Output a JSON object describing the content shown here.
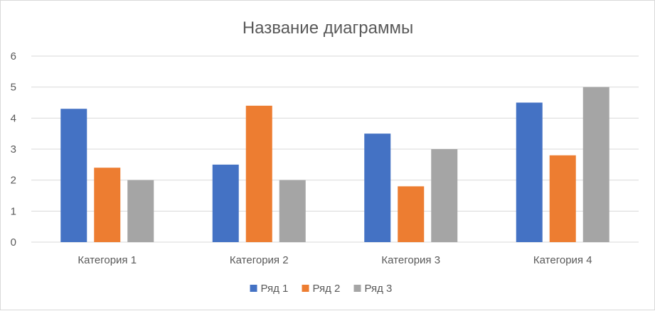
{
  "chart_data": {
    "type": "bar",
    "title": "Название диаграммы",
    "xlabel": "",
    "ylabel": "",
    "categories": [
      "Категория 1",
      "Категория 2",
      "Категория 3",
      "Категория 4"
    ],
    "series": [
      {
        "name": "Ряд 1",
        "color": "#4472c4",
        "values": [
          4.3,
          2.5,
          3.5,
          4.5
        ]
      },
      {
        "name": "Ряд 2",
        "color": "#ed7d31",
        "values": [
          2.4,
          4.4,
          1.8,
          2.8
        ]
      },
      {
        "name": "Ряд 3",
        "color": "#a5a5a5",
        "values": [
          2,
          2,
          3,
          5
        ]
      }
    ],
    "ylim": [
      0,
      6
    ],
    "yticks": [
      "0",
      "1",
      "2",
      "3",
      "4",
      "5",
      "6"
    ],
    "grid": true,
    "legend_position": "bottom",
    "grid_color": "#d9d9d9"
  }
}
